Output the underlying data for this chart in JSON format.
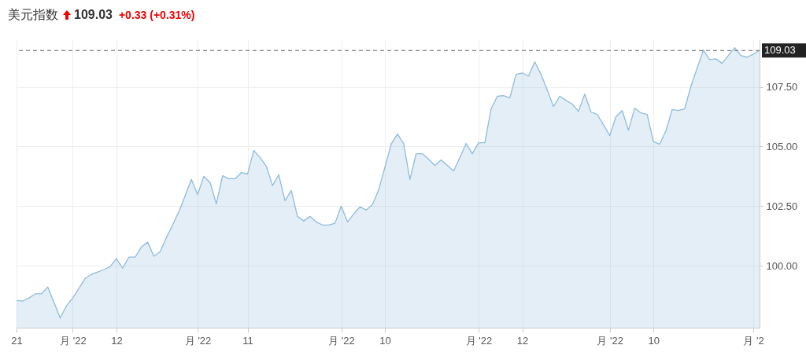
{
  "chart_data": {
    "type": "area",
    "title": "美元指数",
    "annotations": [
      "109.03",
      "+0.33 (+0.31%)"
    ],
    "categories": [
      "21",
      null,
      null,
      null,
      null,
      null,
      null,
      null,
      null,
      "月 '22",
      null,
      null,
      null,
      null,
      null,
      null,
      "12",
      null,
      null,
      null,
      null,
      null,
      null,
      null,
      null,
      null,
      null,
      null,
      null,
      "月 '22",
      null,
      null,
      null,
      null,
      null,
      null,
      null,
      "11",
      null,
      null,
      null,
      null,
      null,
      null,
      null,
      null,
      null,
      null,
      null,
      null,
      null,
      null,
      "月 '22",
      null,
      null,
      null,
      null,
      null,
      null,
      "10",
      null,
      null,
      null,
      null,
      null,
      null,
      null,
      null,
      null,
      null,
      null,
      null,
      null,
      null,
      "月 '22",
      null,
      null,
      null,
      null,
      null,
      null,
      "12",
      null,
      null,
      null,
      null,
      null,
      null,
      null,
      null,
      null,
      null,
      null,
      null,
      null,
      "月 '22",
      null,
      null,
      null,
      null,
      null,
      null,
      "10",
      null,
      null,
      null,
      null,
      null,
      null,
      null,
      null,
      null,
      null,
      null,
      null,
      null,
      null,
      null,
      "月 '2",
      null
    ],
    "series": [
      {
        "color": "#8fbcdc",
        "values": [
          98.54,
          98.52,
          98.65,
          98.82,
          98.82,
          99.11,
          98.46,
          97.81,
          98.32,
          98.65,
          99.05,
          99.47,
          99.64,
          99.74,
          99.84,
          99.97,
          100.3,
          99.9,
          100.36,
          100.36,
          100.79,
          100.99,
          100.4,
          100.59,
          101.18,
          101.71,
          102.27,
          102.93,
          103.62,
          102.99,
          103.75,
          103.49,
          102.6,
          103.78,
          103.65,
          103.65,
          103.91,
          103.85,
          104.84,
          104.54,
          104.18,
          103.36,
          103.82,
          102.73,
          103.16,
          102.07,
          101.88,
          102.07,
          101.84,
          101.71,
          101.71,
          101.78,
          102.5,
          101.84,
          102.17,
          102.47,
          102.34,
          102.57,
          103.19,
          104.14,
          105.1,
          105.53,
          105.13,
          103.62,
          104.7,
          104.7,
          104.47,
          104.21,
          104.44,
          104.21,
          103.98,
          104.54,
          105.13,
          104.7,
          105.16,
          105.16,
          106.58,
          107.11,
          107.14,
          107.04,
          108.03,
          108.09,
          107.96,
          108.55,
          108.03,
          107.37,
          106.68,
          107.11,
          106.94,
          106.78,
          106.48,
          107.2,
          106.45,
          106.35,
          105.92,
          105.46,
          106.25,
          106.51,
          105.69,
          106.61,
          106.41,
          106.35,
          105.2,
          105.1,
          105.66,
          106.55,
          106.51,
          106.58,
          107.53,
          108.29,
          109.05,
          108.65,
          108.68,
          108.49,
          108.82,
          109.15,
          108.82,
          108.75,
          108.88,
          109.03
        ]
      }
    ],
    "ylim": [
      97.4,
      109.5
    ],
    "yticks": [
      {
        "value": 100,
        "label": "100.00"
      },
      {
        "value": 102.5,
        "label": "102.50"
      },
      {
        "value": 105,
        "label": "105.00"
      },
      {
        "value": 107.5,
        "label": "107.50"
      }
    ],
    "ref_lines": [
      {
        "axis": "y",
        "value": 109.03,
        "label": "109.03",
        "color": "#666666",
        "line_style": "dashed"
      }
    ],
    "grid": true
  }
}
